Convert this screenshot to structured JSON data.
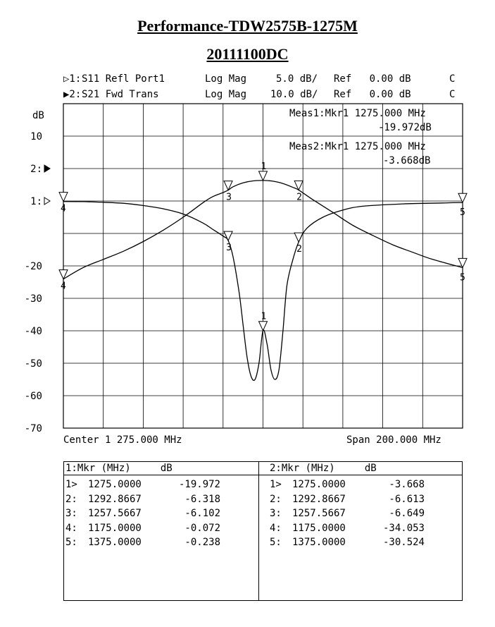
{
  "title": "Performance-TDW2575B-1275M",
  "subtitle": "20111100DC",
  "traces": [
    {
      "prefix": "▷1:",
      "name": "S11 Refl Port1",
      "format": "Log Mag",
      "scale": "5.0 dB/",
      "ref": "Ref   0.00 dB",
      "flag": "C"
    },
    {
      "prefix": "▶2:",
      "name": "S21 Fwd Trans",
      "format": "Log Mag",
      "scale": "10.0 dB/",
      "ref": "Ref   0.00 dB",
      "flag": "C"
    }
  ],
  "y_unit": "dB",
  "meas1": {
    "line1": "Meas1:Mkr1 1275.000 MHz",
    "line2": "-19.972dB"
  },
  "meas2": {
    "line1": "Meas2:Mkr1 1275.000 MHz",
    "line2": "-3.668dB"
  },
  "center_label": "Center 1 275.000 MHz",
  "span_label": "Span 200.000 MHz",
  "table": {
    "left_header": "1:Mkr (MHz)     dB",
    "right_header": "2:Mkr (MHz)     dB",
    "left_rows": [
      {
        "id": "1>",
        "freq": "1275.0000",
        "db": "-19.972"
      },
      {
        "id": "2:",
        "freq": "1292.8667",
        "db": "-6.318"
      },
      {
        "id": "3:",
        "freq": "1257.5667",
        "db": "-6.102"
      },
      {
        "id": "4:",
        "freq": "1175.0000",
        "db": "-0.072"
      },
      {
        "id": "5:",
        "freq": "1375.0000",
        "db": "-0.238"
      }
    ],
    "right_rows": [
      {
        "id": "1>",
        "freq": "1275.0000",
        "db": "-3.668"
      },
      {
        "id": "2:",
        "freq": "1292.8667",
        "db": "-6.613"
      },
      {
        "id": "3:",
        "freq": "1257.5667",
        "db": "-6.649"
      },
      {
        "id": "4:",
        "freq": "1175.0000",
        "db": "-34.053"
      },
      {
        "id": "5:",
        "freq": "1375.0000",
        "db": "-30.524"
      }
    ]
  },
  "chart_data": {
    "type": "line",
    "xlabel": "",
    "ylabel": "dB",
    "xlim": [
      1175,
      1375
    ],
    "grid": true,
    "y_tick_labels": [
      {
        "level": 4,
        "text": "10"
      },
      {
        "level": 3,
        "text": "2:"
      },
      {
        "level": 2,
        "text": "1:"
      },
      {
        "level": 0,
        "text": "-20"
      },
      {
        "level": -1,
        "text": "-30"
      },
      {
        "level": -2,
        "text": "-40"
      },
      {
        "level": -3,
        "text": "-50"
      },
      {
        "level": -4,
        "text": "-60"
      },
      {
        "level": -5,
        "text": "-70"
      }
    ],
    "series": [
      {
        "name": "S11 Refl Port1",
        "scale_db_per_div": 5,
        "ref_db": 0,
        "ref_level": 2,
        "x": [
          1175,
          1185,
          1195,
          1205,
          1215,
          1225,
          1235,
          1245,
          1250,
          1255,
          1257.57,
          1260,
          1263,
          1265,
          1267,
          1269,
          1271,
          1273,
          1275,
          1277,
          1279,
          1281,
          1283,
          1285,
          1287,
          1290,
          1292.87,
          1297,
          1305,
          1315,
          1325,
          1345,
          1365,
          1375
        ],
        "y": [
          -0.072,
          -0.1,
          -0.2,
          -0.35,
          -0.7,
          -1.2,
          -2.0,
          -3.4,
          -4.4,
          -5.4,
          -6.102,
          -8.6,
          -14.0,
          -19.0,
          -24.0,
          -27.0,
          -27.5,
          -25.0,
          -19.972,
          -22.0,
          -26.0,
          -27.5,
          -26.0,
          -20.0,
          -13.0,
          -9.0,
          -6.318,
          -4.2,
          -2.5,
          -1.4,
          -0.8,
          -0.45,
          -0.3,
          -0.238
        ]
      },
      {
        "name": "S21 Fwd Trans",
        "scale_db_per_div": 10,
        "ref_db": 0,
        "ref_level": 3,
        "x": [
          1175,
          1185,
          1195,
          1205,
          1215,
          1225,
          1235,
          1245,
          1250,
          1255,
          1257.57,
          1260,
          1265,
          1270,
          1275,
          1280,
          1285,
          1290,
          1292.87,
          1300,
          1310,
          1320,
          1330,
          1340,
          1350,
          1360,
          1375
        ],
        "y": [
          -34.053,
          -30.5,
          -28.0,
          -25.5,
          -22.5,
          -19.0,
          -15.0,
          -10.5,
          -8.6,
          -7.4,
          -6.649,
          -5.6,
          -4.4,
          -3.8,
          -3.668,
          -3.9,
          -4.6,
          -5.8,
          -6.613,
          -9.6,
          -13.5,
          -17.5,
          -20.6,
          -23.5,
          -25.8,
          -28.0,
          -30.524
        ]
      }
    ],
    "markers": {
      "S11 Refl Port1": [
        {
          "id": "1",
          "x": 1275.0,
          "y": -19.972
        },
        {
          "id": "2",
          "x": 1292.8667,
          "y": -6.318
        },
        {
          "id": "3",
          "x": 1257.5667,
          "y": -6.102
        },
        {
          "id": "4",
          "x": 1175.0,
          "y": -0.072
        },
        {
          "id": "5",
          "x": 1375.0,
          "y": -0.238
        }
      ],
      "S21 Fwd Trans": [
        {
          "id": "1",
          "x": 1275.0,
          "y": -3.668
        },
        {
          "id": "2",
          "x": 1292.8667,
          "y": -6.613
        },
        {
          "id": "3",
          "x": 1257.5667,
          "y": -6.649
        },
        {
          "id": "4",
          "x": 1175.0,
          "y": -34.053
        },
        {
          "id": "5",
          "x": 1375.0,
          "y": -30.524
        }
      ]
    }
  }
}
